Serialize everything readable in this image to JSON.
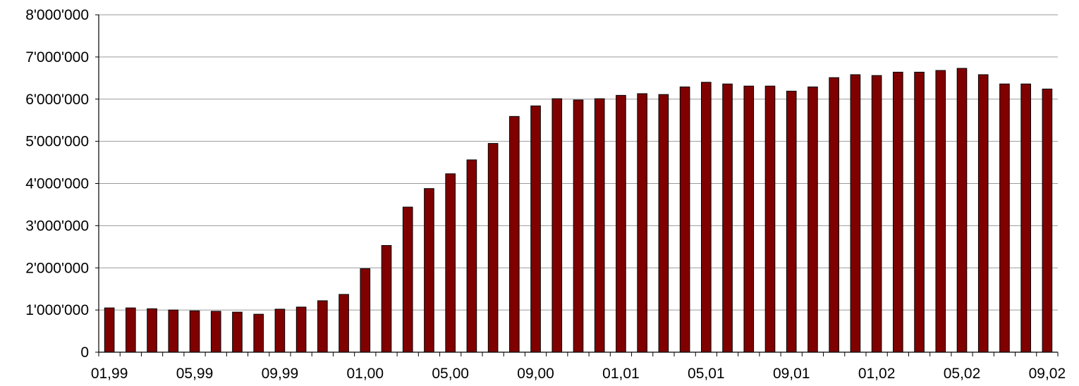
{
  "chart_data": {
    "type": "bar",
    "title": "",
    "xlabel": "",
    "ylabel": "",
    "ylim": [
      0,
      8000000
    ],
    "y_ticks": [
      0,
      1000000,
      2000000,
      3000000,
      4000000,
      5000000,
      6000000,
      7000000,
      8000000
    ],
    "y_tick_labels": [
      "0",
      "1'000'000",
      "2'000'000",
      "3'000'000",
      "4'000'000",
      "5'000'000",
      "6'000'000",
      "7'000'000",
      "8'000'000"
    ],
    "x_tick_labels": [
      "01,99",
      "05,99",
      "09,99",
      "01,00",
      "05,00",
      "09,00",
      "01,01",
      "05,01",
      "09,01",
      "01,02",
      "05,02",
      "09,02"
    ],
    "x_label_every": 4,
    "grid": "horizontal",
    "legend": "none",
    "bar_color": "#800000",
    "values": [
      1050000,
      1050000,
      1030000,
      1000000,
      980000,
      970000,
      950000,
      900000,
      1020000,
      1070000,
      1220000,
      1370000,
      1980000,
      2530000,
      3440000,
      3880000,
      4230000,
      4560000,
      4950000,
      5590000,
      5840000,
      6010000,
      5980000,
      6010000,
      6090000,
      6130000,
      6110000,
      6290000,
      6400000,
      6360000,
      6310000,
      6310000,
      6190000,
      6290000,
      6510000,
      6580000,
      6560000,
      6640000,
      6640000,
      6680000,
      6730000,
      6580000,
      6360000,
      6360000,
      6240000
    ]
  }
}
